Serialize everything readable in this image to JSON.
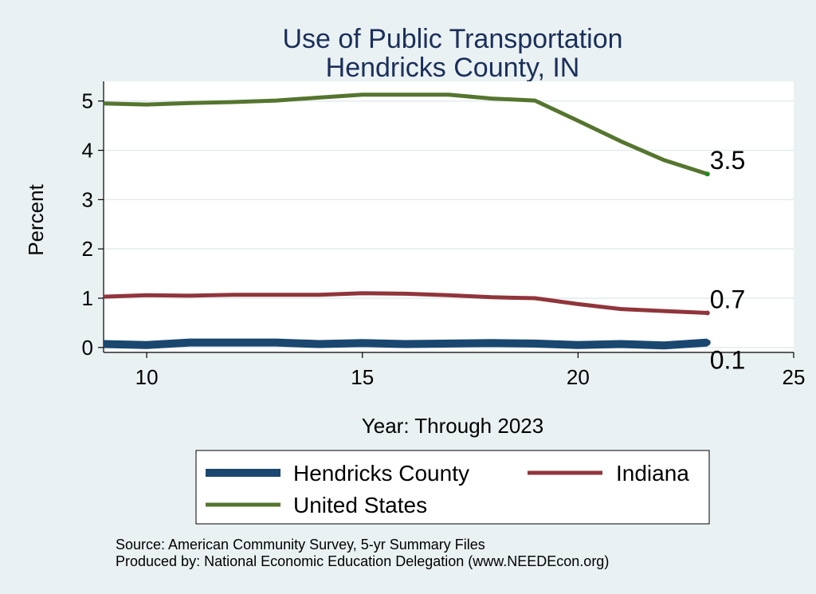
{
  "colors": {
    "background": "#eaf1f3",
    "plot_background": "#ffffff",
    "grid": "#e3ebee",
    "title": "#1a2f5a",
    "hendricks": "#1a476f",
    "indiana": "#90353b",
    "us": "#55752f"
  },
  "chart_data": {
    "type": "line",
    "title": "Use of Public Transportation",
    "subtitle": "Hendricks County, IN",
    "xlabel": "Year: Through 2023",
    "ylabel": "Percent",
    "xlim": [
      9,
      25
    ],
    "ylim": [
      -0.1,
      5.4
    ],
    "xticks": [
      10,
      15,
      20,
      25
    ],
    "yticks": [
      0,
      1,
      2,
      3,
      4,
      5
    ],
    "grid": true,
    "legend_position": "bottom",
    "x": [
      9,
      10,
      11,
      12,
      13,
      14,
      15,
      16,
      17,
      18,
      19,
      20,
      21,
      22,
      23
    ],
    "series": [
      {
        "name": "Hendricks County",
        "color": "#1a476f",
        "values": [
          0.07,
          0.05,
          0.1,
          0.1,
          0.1,
          0.07,
          0.09,
          0.07,
          0.08,
          0.09,
          0.08,
          0.05,
          0.07,
          0.04,
          0.1
        ],
        "end_label": "0.1"
      },
      {
        "name": "Indiana",
        "color": "#90353b",
        "values": [
          1.03,
          1.06,
          1.05,
          1.07,
          1.07,
          1.07,
          1.1,
          1.09,
          1.06,
          1.02,
          1.0,
          0.88,
          0.78,
          0.74,
          0.7
        ],
        "end_label": "0.7"
      },
      {
        "name": "United States",
        "color": "#55752f",
        "values": [
          4.95,
          4.93,
          4.96,
          4.98,
          5.01,
          5.07,
          5.13,
          5.13,
          5.13,
          5.05,
          5.01,
          4.6,
          4.18,
          3.8,
          3.52
        ],
        "end_label": "3.5"
      }
    ]
  },
  "notes": {
    "source": "Source: American Community Survey, 5-yr Summary Files",
    "producer": "Produced by: National Economic Education Delegation (www.NEEDEcon.org)"
  }
}
